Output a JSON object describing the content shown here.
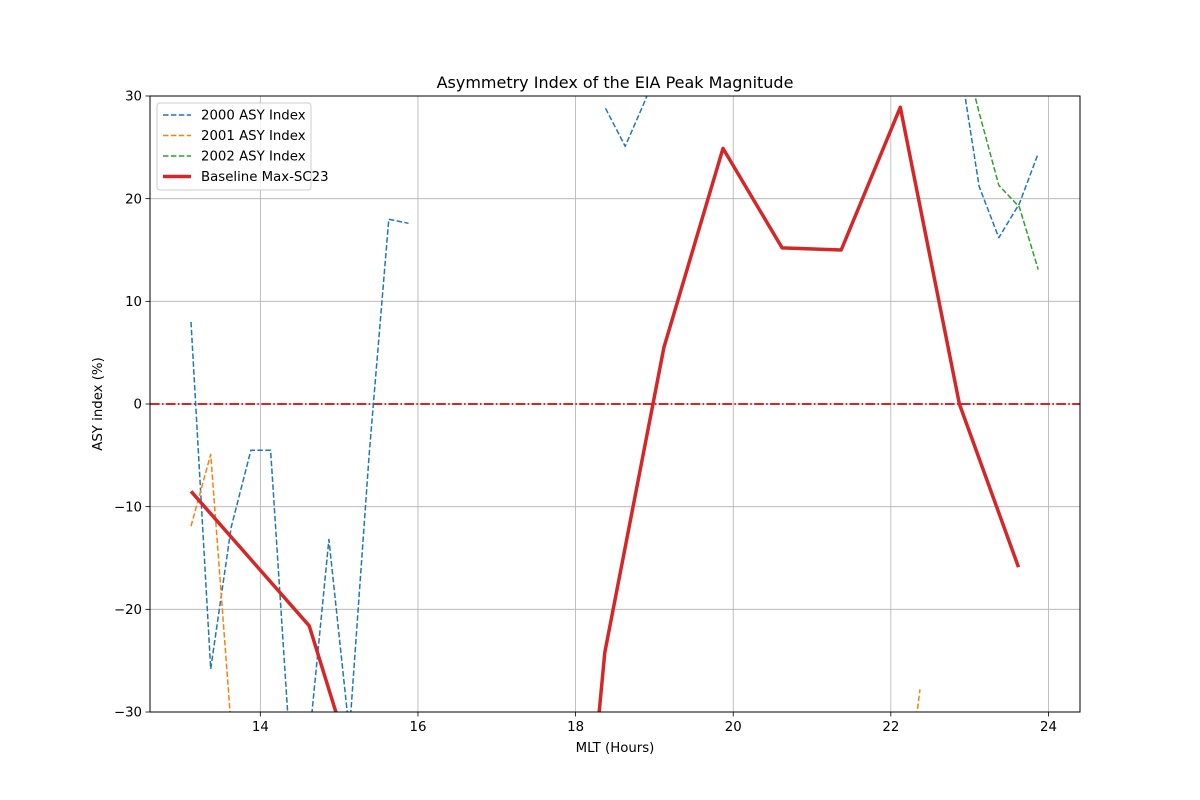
{
  "chart_data": {
    "type": "line",
    "title": "Asymmetry Index of the EIA Peak Magnitude",
    "xlabel": "MLT (Hours)",
    "ylabel": "ASY index (%)",
    "xlim": [
      12.6,
      24.4
    ],
    "ylim": [
      -30,
      30
    ],
    "xticks": [
      14,
      16,
      18,
      20,
      22,
      24
    ],
    "yticks": [
      -30,
      -20,
      -10,
      0,
      10,
      20,
      30
    ],
    "xtick_labels": [
      "14",
      "16",
      "18",
      "20",
      "22",
      "24"
    ],
    "ytick_labels": [
      "−30",
      "−20",
      "−10",
      "0",
      "10",
      "20",
      "30"
    ],
    "grid": true,
    "legend_position": "upper-left",
    "series": [
      {
        "name": "2000 ASY Index",
        "color": "#1f77b4",
        "style": "dashed",
        "width": 1.5,
        "segments": [
          [
            [
              13.12,
              8.0
            ],
            [
              13.37,
              -25.8
            ],
            [
              13.63,
              -12.0
            ],
            [
              13.88,
              -4.5
            ],
            [
              14.13,
              -4.5
            ],
            [
              14.38,
              -34.0
            ],
            [
              14.63,
              -32.0
            ],
            [
              14.87,
              -13.2
            ],
            [
              15.13,
              -32.0
            ],
            [
              15.38,
              -5.0
            ],
            [
              15.63,
              18.0
            ],
            [
              15.88,
              17.6
            ]
          ],
          [
            [
              18.38,
              28.8
            ],
            [
              18.63,
              25.1
            ],
            [
              18.88,
              29.5
            ],
            [
              19.0,
              32.0
            ]
          ],
          [
            [
              22.9,
              32.0
            ],
            [
              23.12,
              21.2
            ],
            [
              23.37,
              16.2
            ],
            [
              23.63,
              19.5
            ],
            [
              23.87,
              24.4
            ]
          ]
        ]
      },
      {
        "name": "2001 ASY Index",
        "color": "#ff7f0e",
        "style": "dashed",
        "width": 1.5,
        "segments": [
          [
            [
              13.12,
              -11.9
            ],
            [
              13.37,
              -4.9
            ],
            [
              13.63,
              -31.5
            ]
          ],
          [
            [
              22.3,
              -32.0
            ],
            [
              22.37,
              -27.8
            ]
          ]
        ]
      },
      {
        "name": "2002 ASY Index",
        "color": "#2ca02c",
        "style": "dashed",
        "width": 1.5,
        "segments": [
          [
            [
              23.0,
              32.0
            ],
            [
              23.12,
              28.4
            ],
            [
              23.37,
              21.3
            ],
            [
              23.63,
              19.2
            ],
            [
              23.87,
              13.1
            ]
          ]
        ]
      },
      {
        "name": "Baseline Max-SC23",
        "color": "#d62728",
        "style": "solid",
        "width": 3.5,
        "segments": [
          [
            [
              13.12,
              -8.5
            ],
            [
              14.62,
              -21.6
            ],
            [
              15.12,
              -34.0
            ]
          ],
          [
            [
              18.25,
              -34.0
            ],
            [
              18.37,
              -24.2
            ],
            [
              19.12,
              5.5
            ],
            [
              19.87,
              24.9
            ],
            [
              20.62,
              15.2
            ],
            [
              21.37,
              15.0
            ],
            [
              22.12,
              28.9
            ],
            [
              22.87,
              0.0
            ],
            [
              23.62,
              -15.9
            ]
          ]
        ]
      }
    ],
    "reference_line": {
      "y": 0,
      "color": "#d62728",
      "style": "dashdot"
    }
  }
}
